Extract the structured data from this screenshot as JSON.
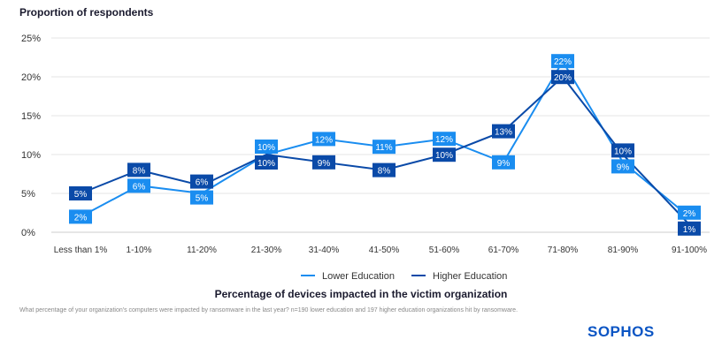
{
  "chart_data": {
    "type": "line",
    "ylabel": "Proportion of respondents",
    "xlabel": "Percentage of devices impacted in the victim organization",
    "categories": [
      "Less than 1%",
      "1-10%",
      "11-20%",
      "21-30%",
      "31-40%",
      "41-50%",
      "51-60%",
      "61-70%",
      "71-80%",
      "81-90%",
      "91-100%"
    ],
    "yticks": [
      "0%",
      "5%",
      "10%",
      "15%",
      "20%",
      "25%"
    ],
    "ylim": [
      0,
      25
    ],
    "grid": true,
    "legend": "bottom",
    "series": [
      {
        "name": "Lower Education",
        "color": "#1a8df0",
        "values": [
          2,
          6,
          5,
          10,
          12,
          11,
          12,
          9,
          22,
          9,
          2
        ]
      },
      {
        "name": "Higher Education",
        "color": "#0a4aa8",
        "values": [
          5,
          8,
          6,
          10,
          9,
          8,
          10,
          13,
          20,
          10,
          1
        ]
      }
    ]
  },
  "footnote": "What percentage of your organization's computers were impacted by ransomware in the last year? n=190 lower education and 197 higher education organizations hit by ransomware.",
  "logo": "SOPHOS"
}
